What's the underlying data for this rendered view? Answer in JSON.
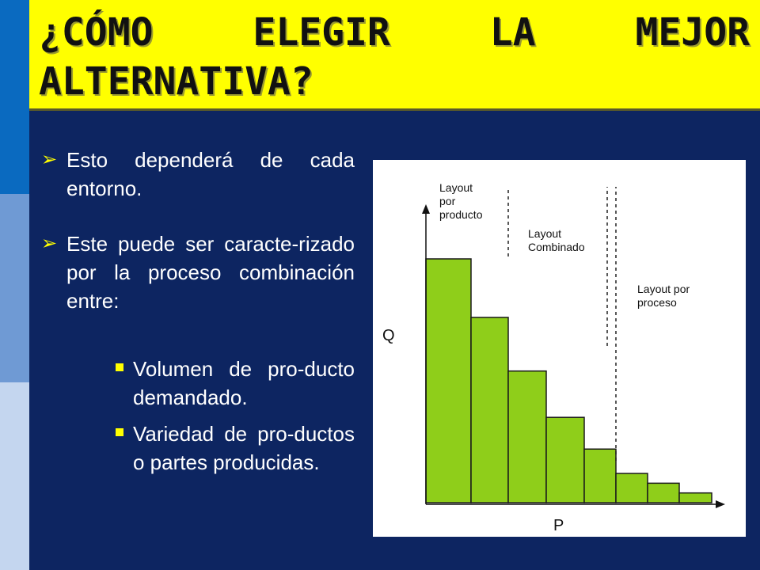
{
  "title": "¿CÓMO ELEGIR LA MEJOR ALTERNATIVA?",
  "bullets": [
    {
      "text": "Esto dependerá de cada entorno."
    },
    {
      "text": "Este puede ser caracte-rizado por la proceso combinación entre:"
    }
  ],
  "sub_bullets": [
    {
      "text": "Volumen de pro-ducto demandado."
    },
    {
      "text": "Variedad de pro-ductos o partes producidas."
    }
  ],
  "chart_data": {
    "type": "bar",
    "xlabel": "P",
    "ylabel": "Q",
    "values": [
      100,
      76,
      54,
      35,
      22,
      12,
      8,
      4
    ],
    "zones": [
      {
        "lines": [
          "Layout",
          "por",
          "producto"
        ]
      },
      {
        "lines": [
          "Layout",
          "Combinado"
        ]
      },
      {
        "lines": [
          "Layout por",
          "proceso"
        ]
      }
    ],
    "bar_color": "#8fce1a",
    "grid": false
  }
}
